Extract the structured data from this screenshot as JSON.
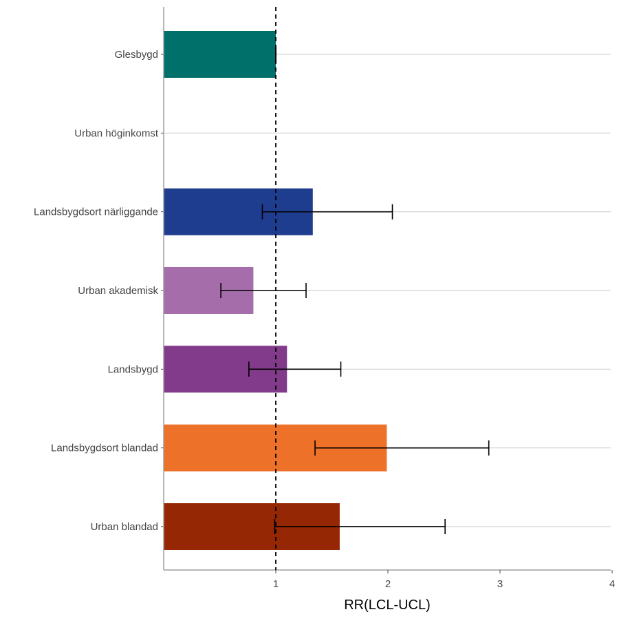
{
  "chart_data": {
    "type": "bar",
    "orientation": "horizontal",
    "title": "",
    "xlabel": "RR(LCL-UCL)",
    "ylabel": "",
    "xlim": [
      0,
      4
    ],
    "x_ticks": [
      "1",
      "2",
      "3",
      "4"
    ],
    "reference_line": {
      "x": 1,
      "style": "dashed"
    },
    "grid": {
      "major_y": true,
      "major_x": false
    },
    "categories": [
      "Glesbygd",
      "Urban höginkomst",
      "Landsbygdsort närliggande",
      "Urban akademisk",
      "Landsbygd",
      "Landsbygdsort blandad",
      "Urban blandad"
    ],
    "values": [
      1.0,
      null,
      1.33,
      0.8,
      1.1,
      1.99,
      1.57
    ],
    "lcl": [
      1.0,
      null,
      0.88,
      0.51,
      0.76,
      1.35,
      0.99
    ],
    "ucl": [
      1.0,
      null,
      2.04,
      1.27,
      1.58,
      2.9,
      2.51
    ],
    "colors": [
      "#00706b",
      "#cccccc",
      "#1f3d8f",
      "#a56eaa",
      "#823a8a",
      "#ee7129",
      "#962705"
    ]
  }
}
